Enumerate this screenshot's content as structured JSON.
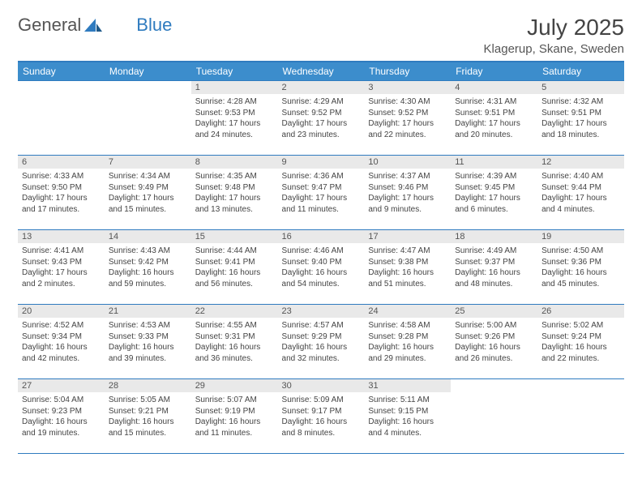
{
  "logo": {
    "part1": "General",
    "part2": "Blue"
  },
  "title": "July 2025",
  "location": "Klagerup, Skane, Sweden",
  "colors": {
    "header_bg": "#3c8dcc",
    "border": "#2f7bbf",
    "daynum_bg": "#e9e9e9",
    "text": "#444444",
    "page_bg": "#ffffff"
  },
  "weekdays": [
    "Sunday",
    "Monday",
    "Tuesday",
    "Wednesday",
    "Thursday",
    "Friday",
    "Saturday"
  ],
  "weeks": [
    [
      {
        "empty": true
      },
      {
        "empty": true
      },
      {
        "num": "1",
        "sunrise": "4:28 AM",
        "sunset": "9:53 PM",
        "daylight": "17 hours and 24 minutes."
      },
      {
        "num": "2",
        "sunrise": "4:29 AM",
        "sunset": "9:52 PM",
        "daylight": "17 hours and 23 minutes."
      },
      {
        "num": "3",
        "sunrise": "4:30 AM",
        "sunset": "9:52 PM",
        "daylight": "17 hours and 22 minutes."
      },
      {
        "num": "4",
        "sunrise": "4:31 AM",
        "sunset": "9:51 PM",
        "daylight": "17 hours and 20 minutes."
      },
      {
        "num": "5",
        "sunrise": "4:32 AM",
        "sunset": "9:51 PM",
        "daylight": "17 hours and 18 minutes."
      }
    ],
    [
      {
        "num": "6",
        "sunrise": "4:33 AM",
        "sunset": "9:50 PM",
        "daylight": "17 hours and 17 minutes."
      },
      {
        "num": "7",
        "sunrise": "4:34 AM",
        "sunset": "9:49 PM",
        "daylight": "17 hours and 15 minutes."
      },
      {
        "num": "8",
        "sunrise": "4:35 AM",
        "sunset": "9:48 PM",
        "daylight": "17 hours and 13 minutes."
      },
      {
        "num": "9",
        "sunrise": "4:36 AM",
        "sunset": "9:47 PM",
        "daylight": "17 hours and 11 minutes."
      },
      {
        "num": "10",
        "sunrise": "4:37 AM",
        "sunset": "9:46 PM",
        "daylight": "17 hours and 9 minutes."
      },
      {
        "num": "11",
        "sunrise": "4:39 AM",
        "sunset": "9:45 PM",
        "daylight": "17 hours and 6 minutes."
      },
      {
        "num": "12",
        "sunrise": "4:40 AM",
        "sunset": "9:44 PM",
        "daylight": "17 hours and 4 minutes."
      }
    ],
    [
      {
        "num": "13",
        "sunrise": "4:41 AM",
        "sunset": "9:43 PM",
        "daylight": "17 hours and 2 minutes."
      },
      {
        "num": "14",
        "sunrise": "4:43 AM",
        "sunset": "9:42 PM",
        "daylight": "16 hours and 59 minutes."
      },
      {
        "num": "15",
        "sunrise": "4:44 AM",
        "sunset": "9:41 PM",
        "daylight": "16 hours and 56 minutes."
      },
      {
        "num": "16",
        "sunrise": "4:46 AM",
        "sunset": "9:40 PM",
        "daylight": "16 hours and 54 minutes."
      },
      {
        "num": "17",
        "sunrise": "4:47 AM",
        "sunset": "9:38 PM",
        "daylight": "16 hours and 51 minutes."
      },
      {
        "num": "18",
        "sunrise": "4:49 AM",
        "sunset": "9:37 PM",
        "daylight": "16 hours and 48 minutes."
      },
      {
        "num": "19",
        "sunrise": "4:50 AM",
        "sunset": "9:36 PM",
        "daylight": "16 hours and 45 minutes."
      }
    ],
    [
      {
        "num": "20",
        "sunrise": "4:52 AM",
        "sunset": "9:34 PM",
        "daylight": "16 hours and 42 minutes."
      },
      {
        "num": "21",
        "sunrise": "4:53 AM",
        "sunset": "9:33 PM",
        "daylight": "16 hours and 39 minutes."
      },
      {
        "num": "22",
        "sunrise": "4:55 AM",
        "sunset": "9:31 PM",
        "daylight": "16 hours and 36 minutes."
      },
      {
        "num": "23",
        "sunrise": "4:57 AM",
        "sunset": "9:29 PM",
        "daylight": "16 hours and 32 minutes."
      },
      {
        "num": "24",
        "sunrise": "4:58 AM",
        "sunset": "9:28 PM",
        "daylight": "16 hours and 29 minutes."
      },
      {
        "num": "25",
        "sunrise": "5:00 AM",
        "sunset": "9:26 PM",
        "daylight": "16 hours and 26 minutes."
      },
      {
        "num": "26",
        "sunrise": "5:02 AM",
        "sunset": "9:24 PM",
        "daylight": "16 hours and 22 minutes."
      }
    ],
    [
      {
        "num": "27",
        "sunrise": "5:04 AM",
        "sunset": "9:23 PM",
        "daylight": "16 hours and 19 minutes."
      },
      {
        "num": "28",
        "sunrise": "5:05 AM",
        "sunset": "9:21 PM",
        "daylight": "16 hours and 15 minutes."
      },
      {
        "num": "29",
        "sunrise": "5:07 AM",
        "sunset": "9:19 PM",
        "daylight": "16 hours and 11 minutes."
      },
      {
        "num": "30",
        "sunrise": "5:09 AM",
        "sunset": "9:17 PM",
        "daylight": "16 hours and 8 minutes."
      },
      {
        "num": "31",
        "sunrise": "5:11 AM",
        "sunset": "9:15 PM",
        "daylight": "16 hours and 4 minutes."
      },
      {
        "empty": true
      },
      {
        "empty": true
      }
    ]
  ],
  "labels": {
    "sunrise": "Sunrise:",
    "sunset": "Sunset:",
    "daylight": "Daylight:"
  }
}
